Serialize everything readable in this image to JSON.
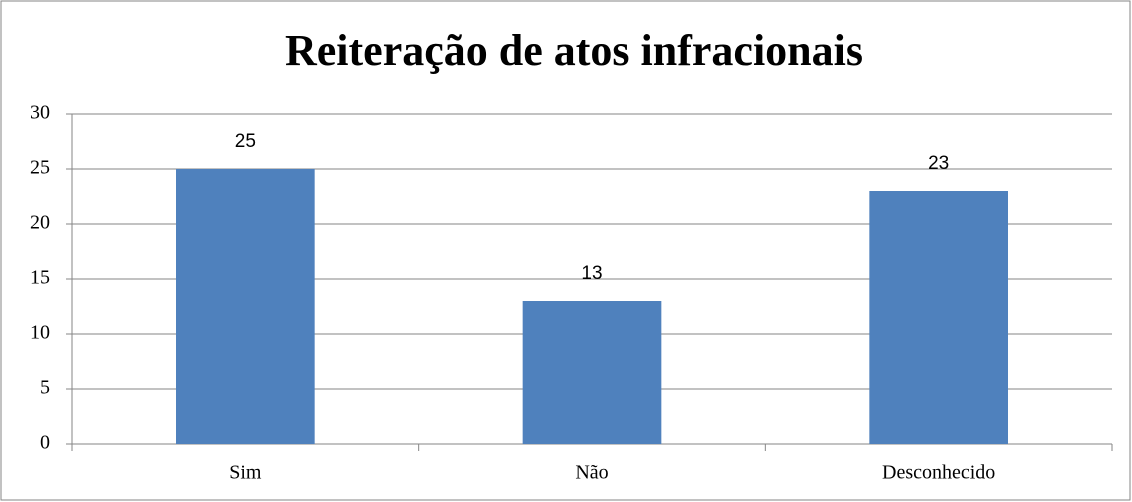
{
  "chart_data": {
    "type": "bar",
    "title": "Reiteração de atos infracionais",
    "categories": [
      "Sim",
      "Não",
      "Desconhecido"
    ],
    "values": [
      25,
      13,
      23
    ],
    "color": "#4f81bd",
    "ylim": [
      0,
      30
    ],
    "yticks": [
      0,
      5,
      10,
      15,
      20,
      25,
      30
    ],
    "grid": true
  }
}
